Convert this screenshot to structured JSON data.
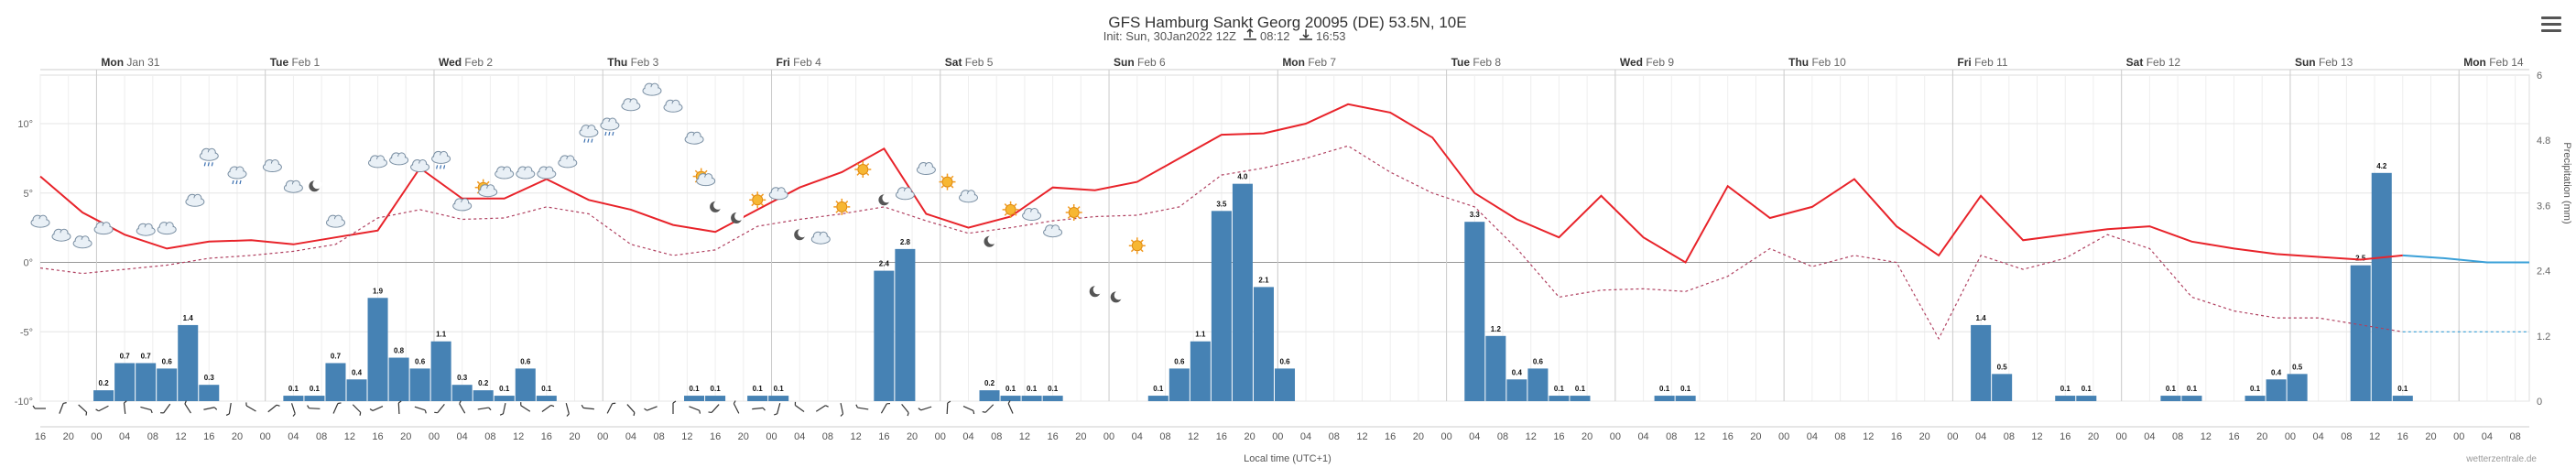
{
  "header": {
    "title": "GFS Hamburg Sankt Georg 20095 (DE) 53.5N, 10E",
    "init": "Init: Sun, 30Jan2022 12Z",
    "sunrise": "08:12",
    "sunset": "16:53"
  },
  "footer": {
    "xlabel": "Local time (UTC+1)",
    "credit": "wetterzentrale.de"
  },
  "chart_data": {
    "type": "line",
    "title": "GFS Hamburg Sankt Georg 20095 (DE) 53.5N, 10E",
    "subtitle": "Init: Sun, 30Jan2022 12Z",
    "xlabel": "Local time (UTC+1)",
    "ylabel_right": "Precipitation (mm)",
    "day_labels": [
      {
        "day": "Mon",
        "date": "Jan 31"
      },
      {
        "day": "Tue",
        "date": "Feb 1"
      },
      {
        "day": "Wed",
        "date": "Feb 2"
      },
      {
        "day": "Thu",
        "date": "Feb 3"
      },
      {
        "day": "Fri",
        "date": "Feb 4"
      },
      {
        "day": "Sat",
        "date": "Feb 5"
      },
      {
        "day": "Sun",
        "date": "Feb 6"
      },
      {
        "day": "Mon",
        "date": "Feb 7"
      },
      {
        "day": "Tue",
        "date": "Feb 8"
      },
      {
        "day": "Wed",
        "date": "Feb 9"
      },
      {
        "day": "Thu",
        "date": "Feb 10"
      },
      {
        "day": "Fri",
        "date": "Feb 11"
      },
      {
        "day": "Sat",
        "date": "Feb 12"
      },
      {
        "day": "Sun",
        "date": "Feb 13"
      },
      {
        "day": "Mon",
        "date": "Feb 14"
      }
    ],
    "hour_ticks": [
      "16",
      "20",
      "00",
      "04",
      "08",
      "12",
      "16",
      "20",
      "00",
      "04",
      "08",
      "12",
      "16",
      "20",
      "00",
      "04",
      "08",
      "12",
      "16",
      "20",
      "00",
      "04",
      "08",
      "12",
      "16",
      "20",
      "00",
      "04",
      "08",
      "12",
      "16",
      "20",
      "00",
      "04",
      "08",
      "12",
      "16",
      "20",
      "00",
      "04",
      "08",
      "12",
      "16",
      "20",
      "00",
      "04",
      "08",
      "12",
      "16",
      "20",
      "00",
      "04",
      "08",
      "12",
      "16",
      "20",
      "00",
      "04",
      "08",
      "12",
      "16",
      "20",
      "00",
      "04",
      "08",
      "12",
      "16",
      "20",
      "00",
      "04",
      "08",
      "12",
      "16",
      "20",
      "00",
      "04",
      "08",
      "12",
      "16",
      "20",
      "00",
      "04",
      "08",
      "12",
      "16",
      "20",
      "00",
      "04",
      "08"
    ],
    "y_left": {
      "ticks": [
        "10°",
        "5°",
        "0°",
        "-5°",
        "-10°"
      ],
      "values": [
        10,
        5,
        0,
        -5,
        -10
      ],
      "ylim": [
        -10,
        13.5
      ]
    },
    "y_right": {
      "ticks": [
        "0",
        "1.2",
        "2.4",
        "3.6",
        "4.8",
        "6"
      ],
      "values": [
        0,
        1.2,
        2.4,
        3.6,
        4.8,
        6
      ],
      "ylim": [
        0,
        6
      ]
    },
    "x_hours_range": [
      0,
      354
    ],
    "series": [
      {
        "kind": "temperature",
        "color": "#e8232a",
        "color_late": "#3aa0d8",
        "x": [
          0,
          6,
          12,
          18,
          24,
          30,
          36,
          42,
          48,
          54,
          60,
          66,
          72,
          78,
          84,
          90,
          96,
          102,
          108,
          114,
          120,
          126,
          132,
          138,
          144,
          150,
          156,
          162,
          168,
          174,
          180,
          186,
          192,
          198,
          204,
          210,
          216,
          222,
          228,
          234,
          240,
          246,
          252,
          258,
          264,
          270,
          276,
          282,
          288,
          294,
          300,
          306,
          312,
          318,
          324,
          330,
          336,
          342,
          348,
          354
        ],
        "values": [
          6.2,
          3.6,
          2.0,
          1.0,
          1.5,
          1.6,
          1.3,
          1.8,
          2.3,
          6.8,
          4.6,
          4.6,
          6.0,
          4.5,
          3.8,
          2.7,
          2.2,
          3.8,
          5.4,
          6.5,
          8.2,
          3.5,
          2.5,
          3.3,
          5.4,
          5.2,
          5.8,
          7.5,
          9.2,
          9.3,
          10.0,
          11.4,
          10.8,
          9.0,
          5.0,
          3.1,
          1.8,
          4.8,
          1.8,
          0.0,
          5.5,
          3.2,
          4.0,
          6.0,
          2.6,
          0.5,
          4.8,
          1.6,
          2.0,
          2.4,
          2.6,
          1.5,
          1.0,
          0.6,
          0.4,
          0.2,
          0.5,
          0.3,
          0.0,
          0.0
        ]
      },
      {
        "kind": "dewpoint",
        "color": "#b04060",
        "color_late": "#3aa0d8",
        "values": [
          -0.4,
          -0.8,
          -0.5,
          -0.2,
          0.3,
          0.5,
          0.8,
          1.3,
          3.2,
          3.8,
          3.1,
          3.2,
          4.0,
          3.5,
          1.3,
          0.5,
          0.9,
          2.6,
          3.1,
          3.5,
          4.0,
          3.0,
          2.1,
          2.5,
          3.0,
          3.3,
          3.4,
          4.0,
          6.3,
          6.8,
          7.5,
          8.4,
          6.5,
          5.0,
          4.0,
          1.0,
          -2.5,
          -2.0,
          -1.9,
          -2.1,
          -1.0,
          1.0,
          -0.3,
          0.5,
          0.0,
          -5.5,
          0.5,
          -0.5,
          0.3,
          2.0,
          1.0,
          -2.5,
          -3.5,
          -4.0,
          -4.0,
          -4.5,
          -5.0,
          -5.0,
          -5.0,
          -5.0
        ]
      }
    ],
    "precipitation": {
      "unit": "mm",
      "color": "#4682b4",
      "bars": [
        {
          "x": 9,
          "v": 0.2
        },
        {
          "x": 12,
          "v": 0.7
        },
        {
          "x": 15,
          "v": 0.7
        },
        {
          "x": 18,
          "v": 0.6
        },
        {
          "x": 21,
          "v": 1.4
        },
        {
          "x": 24,
          "v": 0.3
        },
        {
          "x": 36,
          "v": 0.1
        },
        {
          "x": 39,
          "v": 0.1
        },
        {
          "x": 42,
          "v": 0.7
        },
        {
          "x": 45,
          "v": 0.4
        },
        {
          "x": 48,
          "v": 1.9
        },
        {
          "x": 51,
          "v": 0.8
        },
        {
          "x": 54,
          "v": 0.6
        },
        {
          "x": 57,
          "v": 1.1
        },
        {
          "x": 60,
          "v": 0.3
        },
        {
          "x": 63,
          "v": 0.2
        },
        {
          "x": 66,
          "v": 0.1
        },
        {
          "x": 69,
          "v": 0.6
        },
        {
          "x": 72,
          "v": 0.1
        },
        {
          "x": 93,
          "v": 0.1
        },
        {
          "x": 96,
          "v": 0.1
        },
        {
          "x": 102,
          "v": 0.1
        },
        {
          "x": 105,
          "v": 0.1
        },
        {
          "x": 120,
          "v": 2.4
        },
        {
          "x": 123,
          "v": 2.8
        },
        {
          "x": 135,
          "v": 0.2
        },
        {
          "x": 138,
          "v": 0.1
        },
        {
          "x": 141,
          "v": 0.1
        },
        {
          "x": 144,
          "v": 0.1
        },
        {
          "x": 159,
          "v": 0.1
        },
        {
          "x": 162,
          "v": 0.6
        },
        {
          "x": 165,
          "v": 1.1
        },
        {
          "x": 168,
          "v": 3.5
        },
        {
          "x": 171,
          "v": 4.0
        },
        {
          "x": 174,
          "v": 2.1
        },
        {
          "x": 177,
          "v": 0.6
        },
        {
          "x": 204,
          "v": 3.3
        },
        {
          "x": 207,
          "v": 1.2
        },
        {
          "x": 210,
          "v": 0.4
        },
        {
          "x": 213,
          "v": 0.6
        },
        {
          "x": 216,
          "v": 0.1
        },
        {
          "x": 219,
          "v": 0.1
        },
        {
          "x": 231,
          "v": 0.1
        },
        {
          "x": 234,
          "v": 0.1
        },
        {
          "x": 276,
          "v": 1.4
        },
        {
          "x": 279,
          "v": 0.5
        },
        {
          "x": 288,
          "v": 0.1
        },
        {
          "x": 291,
          "v": 0.1
        },
        {
          "x": 303,
          "v": 0.1
        },
        {
          "x": 306,
          "v": 0.1
        },
        {
          "x": 315,
          "v": 0.1
        },
        {
          "x": 318,
          "v": 0.4
        },
        {
          "x": 321,
          "v": 0.5
        },
        {
          "x": 330,
          "v": 2.5
        },
        {
          "x": 333,
          "v": 4.2
        },
        {
          "x": 336,
          "v": 0.1
        }
      ]
    },
    "wind_arrows_range_hours": [
      0,
      138
    ],
    "icons": [
      {
        "x": 0,
        "y": 3,
        "kind": "cloud"
      },
      {
        "x": 3,
        "y": 2,
        "kind": "cloud"
      },
      {
        "x": 6,
        "y": 1.5,
        "kind": "cloud"
      },
      {
        "x": 9,
        "y": 2.5,
        "kind": "cloud"
      },
      {
        "x": 15,
        "y": 2.4,
        "kind": "cloud"
      },
      {
        "x": 18,
        "y": 2.5,
        "kind": "cloud"
      },
      {
        "x": 22,
        "y": 4.5,
        "kind": "cloud"
      },
      {
        "x": 24,
        "y": 7.8,
        "kind": "rain-cloud"
      },
      {
        "x": 28,
        "y": 6.5,
        "kind": "rain-cloud"
      },
      {
        "x": 33,
        "y": 7.0,
        "kind": "cloud"
      },
      {
        "x": 36,
        "y": 5.5,
        "kind": "cloud"
      },
      {
        "x": 39,
        "y": 5.5,
        "kind": "moon"
      },
      {
        "x": 42,
        "y": 3.0,
        "kind": "cloud"
      },
      {
        "x": 48,
        "y": 7.3,
        "kind": "cloud"
      },
      {
        "x": 51,
        "y": 7.5,
        "kind": "cloud"
      },
      {
        "x": 54,
        "y": 7.0,
        "kind": "cloud"
      },
      {
        "x": 57,
        "y": 7.6,
        "kind": "rain-cloud"
      },
      {
        "x": 60,
        "y": 4.2,
        "kind": "cloud"
      },
      {
        "x": 63,
        "y": 5.4,
        "kind": "sun-cloud"
      },
      {
        "x": 66,
        "y": 6.5,
        "kind": "cloud"
      },
      {
        "x": 69,
        "y": 6.5,
        "kind": "cloud"
      },
      {
        "x": 72,
        "y": 6.5,
        "kind": "cloud"
      },
      {
        "x": 75,
        "y": 7.3,
        "kind": "cloud"
      },
      {
        "x": 78,
        "y": 9.5,
        "kind": "rain-cloud"
      },
      {
        "x": 81,
        "y": 10.0,
        "kind": "rain-cloud"
      },
      {
        "x": 84,
        "y": 11.4,
        "kind": "cloud"
      },
      {
        "x": 87,
        "y": 12.5,
        "kind": "cloud"
      },
      {
        "x": 90,
        "y": 11.3,
        "kind": "cloud"
      },
      {
        "x": 93,
        "y": 9.0,
        "kind": "cloud"
      },
      {
        "x": 94,
        "y": 6.2,
        "kind": "sun-cloud"
      },
      {
        "x": 96,
        "y": 4.0,
        "kind": "moon"
      },
      {
        "x": 99,
        "y": 3.2,
        "kind": "moon"
      },
      {
        "x": 102,
        "y": 4.5,
        "kind": "sun"
      },
      {
        "x": 105,
        "y": 5.0,
        "kind": "cloud"
      },
      {
        "x": 108,
        "y": 2.0,
        "kind": "moon"
      },
      {
        "x": 111,
        "y": 1.8,
        "kind": "cloud"
      },
      {
        "x": 114,
        "y": 4.0,
        "kind": "sun"
      },
      {
        "x": 117,
        "y": 6.7,
        "kind": "sun"
      },
      {
        "x": 120,
        "y": 4.5,
        "kind": "moon"
      },
      {
        "x": 123,
        "y": 5.0,
        "kind": "cloud"
      },
      {
        "x": 126,
        "y": 6.8,
        "kind": "cloud"
      },
      {
        "x": 129,
        "y": 5.8,
        "kind": "sun"
      },
      {
        "x": 132,
        "y": 4.8,
        "kind": "cloud"
      },
      {
        "x": 135,
        "y": 1.5,
        "kind": "moon"
      },
      {
        "x": 138,
        "y": 3.8,
        "kind": "sun"
      },
      {
        "x": 141,
        "y": 3.5,
        "kind": "cloud"
      },
      {
        "x": 144,
        "y": 2.3,
        "kind": "cloud"
      },
      {
        "x": 147,
        "y": 3.6,
        "kind": "sun"
      },
      {
        "x": 150,
        "y": -2.1,
        "kind": "moon"
      },
      {
        "x": 153,
        "y": -2.5,
        "kind": "moon"
      },
      {
        "x": 156,
        "y": 1.2,
        "kind": "sun"
      }
    ],
    "grid": true,
    "legend": "none"
  }
}
